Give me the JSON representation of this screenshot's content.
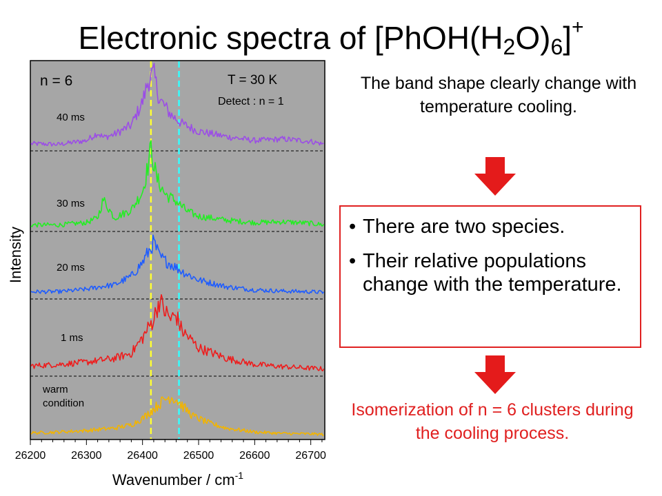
{
  "slide": {
    "title_main": "Electronic spectra of [PhOH(H",
    "title_sub_1": "2",
    "title_mid": "O)",
    "title_sub_2": "6",
    "title_close": "]",
    "title_sup": "+"
  },
  "right_panel": {
    "observation": "The band shape clearly change with temperature cooling.",
    "bullets": [
      "There are two species.",
      "Their relative populations change with the temperature."
    ],
    "conclusion": "Isomerization of n = 6 clusters during the cooling process.",
    "arrow_color": "#e41b1b",
    "box_color": "#e02020"
  },
  "chart_data": {
    "type": "line",
    "title": "",
    "xlabel": "Wavenumber / cm",
    "xlabel_sup": "-1",
    "ylabel": "Intensity",
    "xlim": [
      26200,
      26725
    ],
    "xticks": [
      "26200",
      "26300",
      "26400",
      "26500",
      "26600",
      "26700"
    ],
    "grid": false,
    "plot_background": "#a6a6a6",
    "annotations": {
      "cluster_size": "n = 6",
      "temperature": "T = 30 K",
      "detect": "Detect : n = 1"
    },
    "vertical_markers": [
      {
        "x": 26415,
        "color": "#ffff33"
      },
      {
        "x": 26465,
        "color": "#33ffff"
      }
    ],
    "series": [
      {
        "name": "40 ms",
        "color": "#9b4de6",
        "x": [
          26200,
          26250,
          26300,
          26320,
          26330,
          26350,
          26380,
          26400,
          26410,
          26420,
          26430,
          26450,
          26470,
          26500,
          26550,
          26600,
          26650,
          26700,
          26725
        ],
        "y": [
          0.04,
          0.03,
          0.08,
          0.18,
          0.12,
          0.16,
          0.28,
          0.58,
          0.85,
          0.95,
          0.62,
          0.42,
          0.3,
          0.2,
          0.13,
          0.08,
          0.1,
          0.07,
          0.03
        ]
      },
      {
        "name": "30 ms",
        "color": "#22ee22",
        "x": [
          26200,
          26250,
          26300,
          26320,
          26330,
          26350,
          26380,
          26400,
          26410,
          26415,
          26425,
          26440,
          26460,
          26480,
          26500,
          26550,
          26600,
          26650,
          26700,
          26725
        ],
        "y": [
          0.03,
          0.03,
          0.06,
          0.12,
          0.35,
          0.12,
          0.22,
          0.45,
          0.78,
          1.0,
          0.62,
          0.42,
          0.33,
          0.2,
          0.14,
          0.09,
          0.06,
          0.07,
          0.05,
          0.03
        ]
      },
      {
        "name": "20 ms",
        "color": "#1e5cff",
        "x": [
          26200,
          26250,
          26300,
          26330,
          26350,
          26380,
          26400,
          26420,
          26430,
          26440,
          26450,
          26470,
          26500,
          26550,
          26600,
          26650,
          26700,
          26725
        ],
        "y": [
          0.05,
          0.05,
          0.09,
          0.14,
          0.16,
          0.3,
          0.52,
          0.85,
          0.62,
          0.55,
          0.5,
          0.38,
          0.24,
          0.13,
          0.08,
          0.06,
          0.05,
          0.04
        ]
      },
      {
        "name": "1 ms",
        "color": "#ee1c1c",
        "x": [
          26200,
          26250,
          26300,
          26350,
          26380,
          26400,
          26420,
          26430,
          26440,
          26450,
          26460,
          26470,
          26500,
          26550,
          26600,
          26650,
          26700,
          26725
        ],
        "y": [
          0.08,
          0.1,
          0.13,
          0.18,
          0.25,
          0.45,
          0.7,
          0.95,
          0.8,
          0.7,
          0.75,
          0.55,
          0.32,
          0.18,
          0.1,
          0.07,
          0.05,
          0.04
        ]
      },
      {
        "name": "warm condition",
        "color": "#f2b400",
        "x": [
          26200,
          26250,
          26300,
          26350,
          26380,
          26400,
          26420,
          26440,
          26450,
          26460,
          26470,
          26490,
          26520,
          26550,
          26600,
          26650,
          26700,
          26725
        ],
        "y": [
          0.05,
          0.07,
          0.1,
          0.15,
          0.22,
          0.35,
          0.55,
          0.75,
          0.8,
          0.75,
          0.62,
          0.4,
          0.25,
          0.15,
          0.07,
          0.04,
          0.03,
          0.02
        ]
      }
    ]
  }
}
